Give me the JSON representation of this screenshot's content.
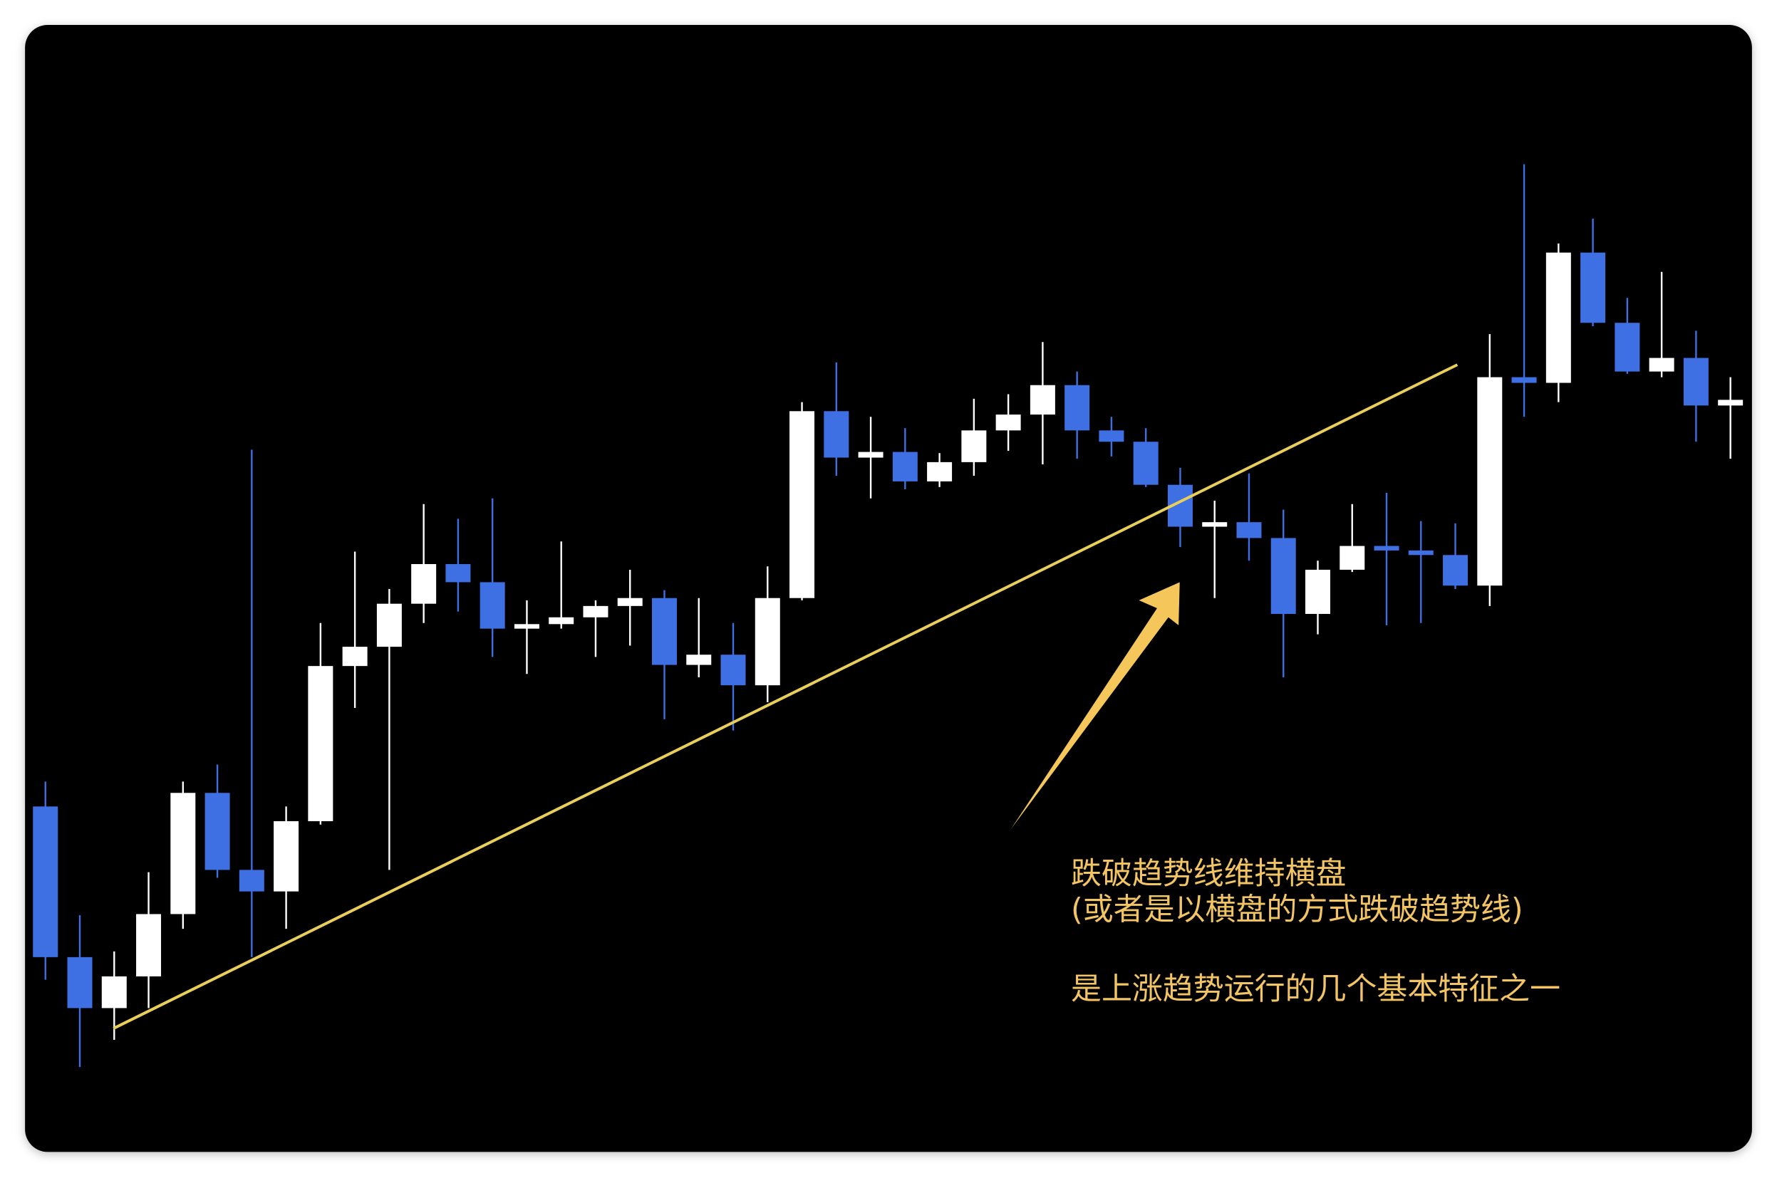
{
  "chart_data": {
    "type": "candlestick",
    "annotation": [
      "跌破趋势线维持横盘",
      "(或者是以横盘的方式跌破趋势线)",
      "是上涨趋势运行的几个基本特征之一"
    ],
    "open": [
      329,
      196,
      151,
      179,
      234,
      341,
      273,
      254,
      316,
      453,
      470,
      508,
      543,
      527,
      486,
      490,
      496,
      506,
      513,
      454,
      463,
      436,
      513,
      678,
      637,
      642,
      616,
      633,
      661,
      675,
      701,
      661,
      651,
      613,
      576,
      580,
      566,
      499,
      538,
      559,
      555,
      551,
      524,
      708,
      703,
      818,
      756,
      713,
      725,
      683
    ],
    "high": [
      351,
      233,
      201,
      271,
      351,
      366,
      644,
      329,
      491,
      554,
      521,
      596,
      583,
      601,
      511,
      563,
      511,
      538,
      520,
      513,
      491,
      541,
      686,
      721,
      673,
      663,
      641,
      689,
      693,
      739,
      713,
      673,
      663,
      628,
      599,
      623,
      591,
      546,
      596,
      606,
      581,
      579,
      746,
      896,
      826,
      848,
      778,
      801,
      749,
      708
    ],
    "low": [
      176,
      99,
      123,
      151,
      221,
      266,
      196,
      221,
      313,
      416,
      273,
      491,
      501,
      461,
      446,
      486,
      461,
      471,
      406,
      443,
      396,
      421,
      511,
      621,
      601,
      609,
      611,
      621,
      643,
      631,
      636,
      638,
      611,
      558,
      513,
      546,
      443,
      481,
      536,
      489,
      491,
      521,
      506,
      673,
      686,
      753,
      711,
      708,
      651,
      636
    ],
    "close": [
      196,
      151,
      179,
      234,
      341,
      273,
      254,
      316,
      453,
      470,
      508,
      543,
      527,
      486,
      490,
      496,
      506,
      513,
      454,
      463,
      436,
      513,
      678,
      637,
      642,
      616,
      633,
      661,
      675,
      701,
      661,
      651,
      613,
      576,
      580,
      566,
      499,
      538,
      559,
      555,
      551,
      524,
      708,
      703,
      818,
      756,
      713,
      725,
      683,
      688
    ],
    "up_color": "#ffffff",
    "down_color": "#3e6fe3",
    "ylim": [
      24,
      1019
    ]
  }
}
